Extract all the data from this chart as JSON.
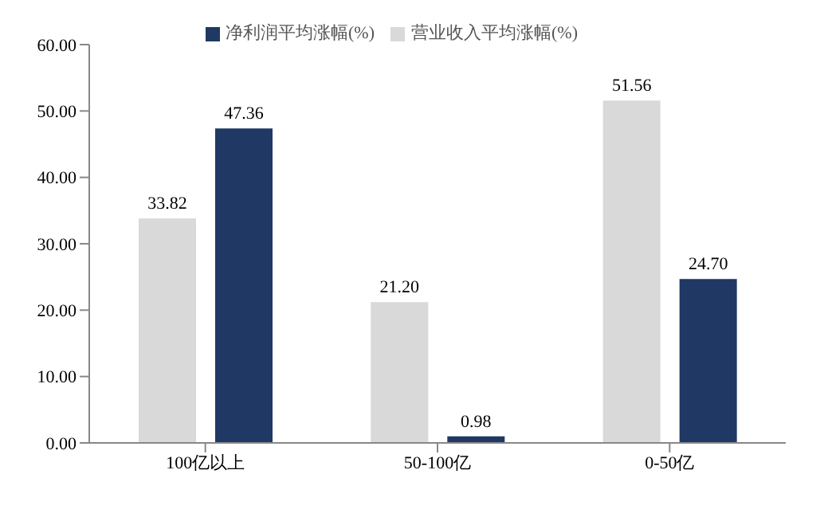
{
  "chart_data": {
    "type": "bar",
    "categories": [
      "100亿以上",
      "50-100亿",
      "0-50亿"
    ],
    "series": [
      {
        "name": "营业收入平均涨幅(%)",
        "color": "#d9d9d9",
        "values": [
          33.82,
          21.2,
          51.56
        ],
        "value_labels": [
          "33.82",
          "21.20",
          "51.56"
        ]
      },
      {
        "name": "净利润平均涨幅(%)",
        "color": "#1f3864",
        "values": [
          47.36,
          0.98,
          24.7
        ],
        "value_labels": [
          "47.36",
          "0.98",
          "24.70"
        ]
      }
    ],
    "ylim": [
      0,
      60
    ],
    "yticks": [
      {
        "value": 0,
        "label": "0.00"
      },
      {
        "value": 10,
        "label": "10.00"
      },
      {
        "value": 20,
        "label": "20.00"
      },
      {
        "value": 30,
        "label": "30.00"
      },
      {
        "value": 40,
        "label": "40.00"
      },
      {
        "value": 50,
        "label": "50.00"
      },
      {
        "value": 60,
        "label": "60.00"
      }
    ],
    "grid": false,
    "legend": "top"
  }
}
